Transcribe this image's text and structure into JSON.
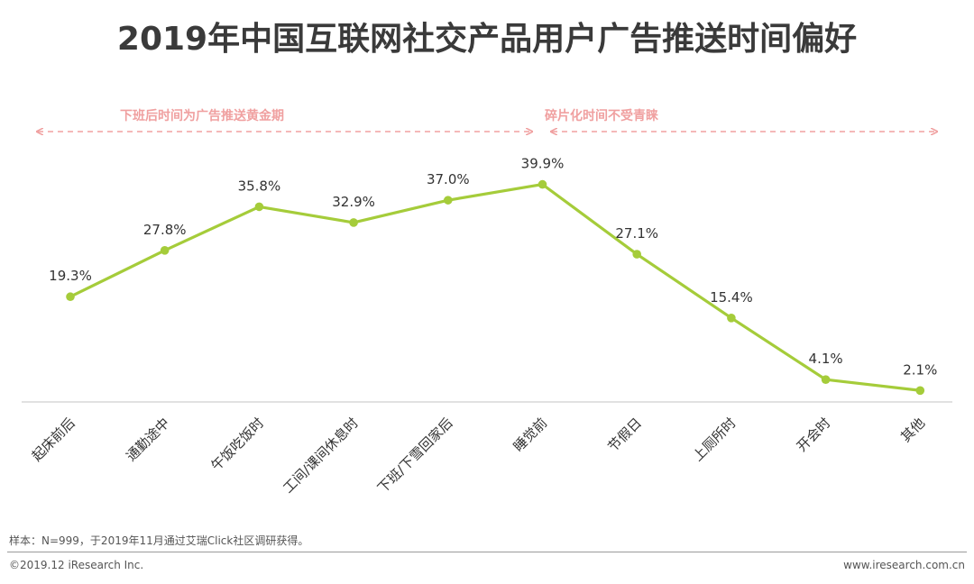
{
  "title": "2019年中国互联网社交产品用户广告推送时间偏好",
  "chart_data": {
    "type": "line",
    "categories": [
      "起床前后",
      "通勤途中",
      "午饭吃饭时",
      "工间/课间休息时",
      "下班/下雪回家后",
      "睡觉前",
      "节假日",
      "上厕所时",
      "开会时",
      "其他"
    ],
    "values": [
      19.3,
      27.8,
      35.8,
      32.9,
      37.0,
      39.9,
      27.1,
      15.4,
      4.1,
      2.1
    ],
    "value_labels": [
      "19.3%",
      "27.8%",
      "35.8%",
      "32.9%",
      "37.0%",
      "39.9%",
      "27.1%",
      "15.4%",
      "4.1%",
      "2.1%"
    ],
    "ylim": [
      0,
      50
    ],
    "grid": false,
    "line_color": "#a5cc3a",
    "annotations": [
      {
        "text": "下班后时间为广告推送黄金期",
        "from_category": 0,
        "to_category": 5
      },
      {
        "text": "碎片化时间不受青睐",
        "from_category": 5,
        "to_category": 9
      }
    ],
    "annotation_color": "#f0a0a0"
  },
  "footer": {
    "note": "样本：N=999，于2019年11月通过艾瑞Click社区调研获得。",
    "copyright": "©2019.12 iResearch Inc.",
    "website": "www.iresearch.com.cn"
  }
}
